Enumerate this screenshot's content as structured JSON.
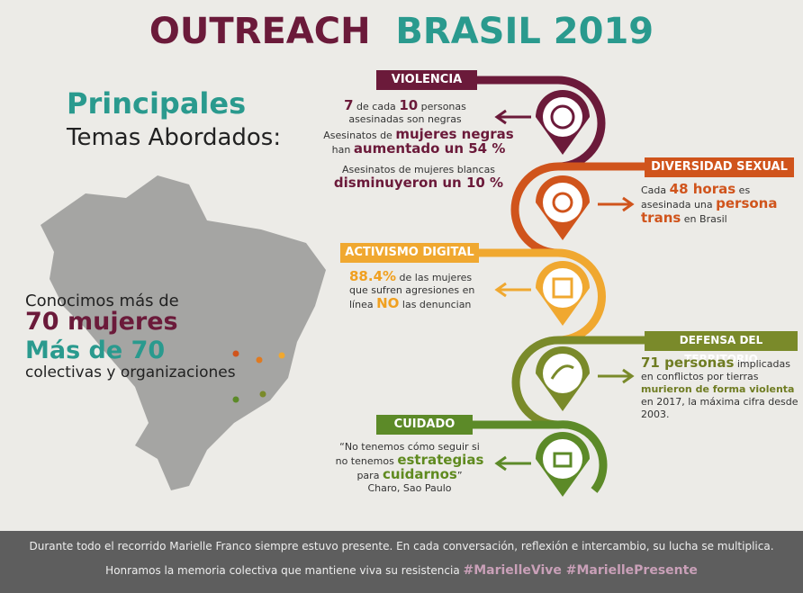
{
  "header": {
    "title_part1": "OUTREACH",
    "title_part2": "BRASIL 2019"
  },
  "left": {
    "heading": "Principales",
    "subheading": "Temas Abordados:",
    "stat_intro": "Conocimos más de",
    "stat_women": "70 mujeres",
    "stat_collectives": "Más de 70",
    "stat_collectives_text": "colectivas y organizaciones"
  },
  "topics": [
    {
      "label": "VIOLENCIA",
      "paragraphs": [
        [
          "7",
          " de cada ",
          "10",
          " personas asesinadas son negras"
        ],
        [
          "Asesinatos de ",
          "mujeres negras",
          " han ",
          "aumentado un 54 %"
        ],
        [
          "Asesinatos de mujeres blancas",
          "disminuyeron un 10 %"
        ]
      ]
    },
    {
      "label": "DIVERSIDAD SEXUAL",
      "paragraphs": [
        [
          "Cada ",
          "48 horas",
          " es asesinada una ",
          "persona trans",
          " en Brasil"
        ]
      ]
    },
    {
      "label": "ACTIVISMO DIGITAL",
      "paragraphs": [
        [
          "88.4%",
          " de las mujeres que sufren agresiones en línea ",
          "NO",
          " las denuncian"
        ]
      ]
    },
    {
      "label": "DEFENSA DEL TERRITORIO",
      "paragraphs": [
        [
          "71 personas",
          " implicadas en conflictos por tierras ",
          "murieron de forma violenta",
          " en 2017, la máxima cifra desde 2003."
        ]
      ]
    },
    {
      "label": "CUIDADO",
      "paragraphs": [
        [
          "“No tenemos cómo seguir si no tenemos ",
          "estrategias",
          " para ",
          "cuidarnos",
          "”"
        ],
        [
          "Charo, Sao Paulo"
        ]
      ]
    }
  ],
  "footer": {
    "line1": "Durante todo el recorrido Marielle Franco siempre estuvo presente. En cada conversación, reflexión e intercambio, su lucha se multiplica.",
    "line2": "Honramos la memoria colectiva que mantiene viva su resistencia ",
    "hashtags": "#MarielleVive #MariellePresente"
  }
}
